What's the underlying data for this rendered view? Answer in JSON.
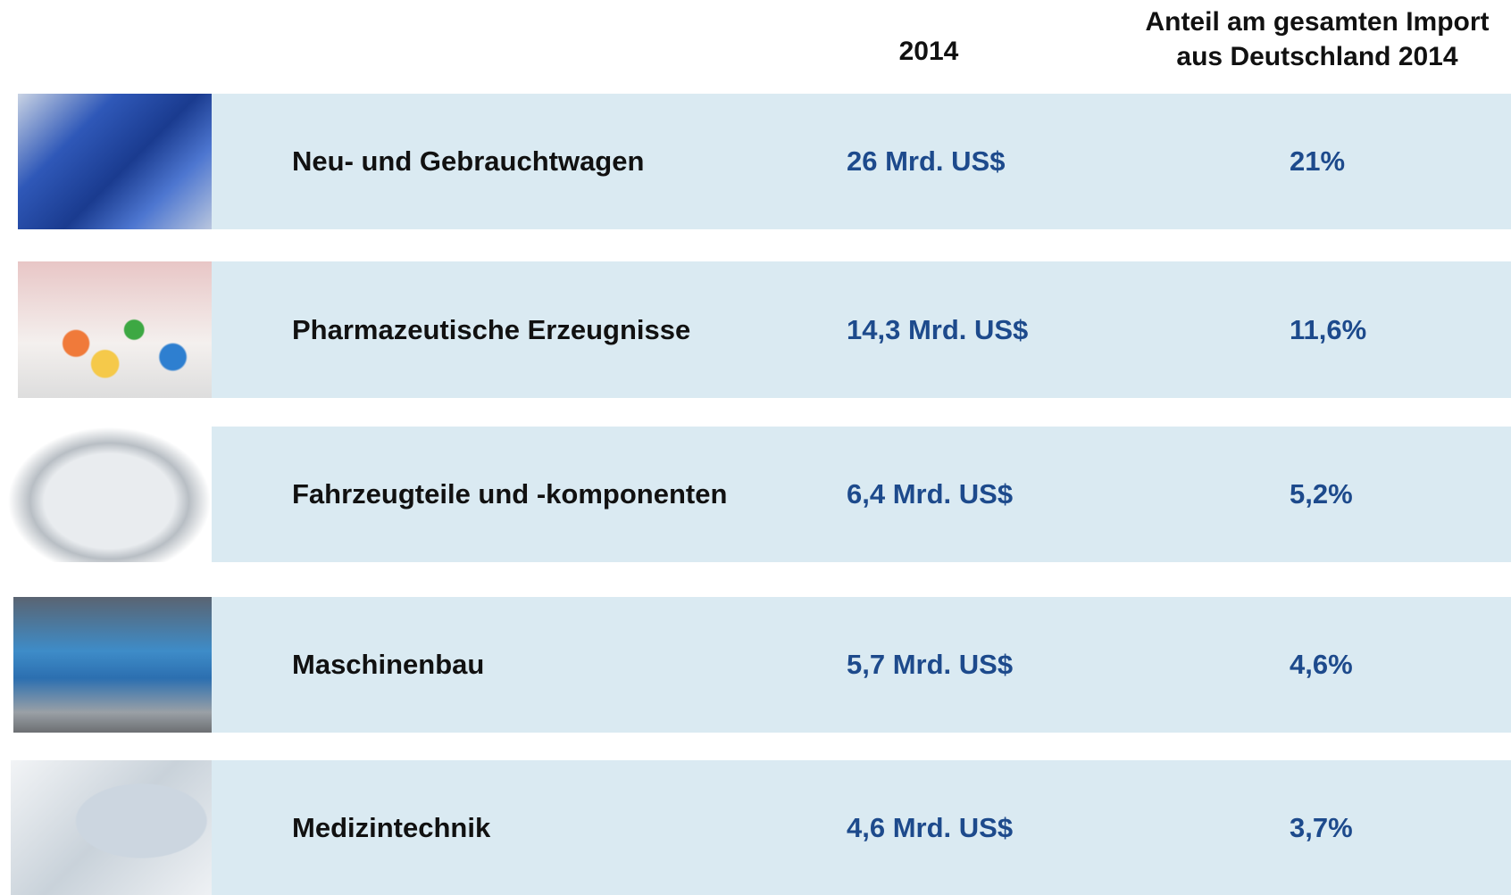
{
  "header": {
    "year": "2014",
    "share": [
      "Anteil am gesamten Import",
      "aus Deutschland 2014"
    ]
  },
  "rows": [
    {
      "label": "Neu- und Gebrauchtwagen",
      "value": "26 Mrd. US$",
      "share": "21%"
    },
    {
      "label": "Pharmazeutische Erzeugnisse",
      "value": "14,3 Mrd. US$",
      "share": "11,6%"
    },
    {
      "label": "Fahrzeugteile und -komponenten",
      "value": "6,4 Mrd. US$",
      "share": "5,2%"
    },
    {
      "label": "Maschinenbau",
      "value": "5,7 Mrd. US$",
      "share": "4,6%"
    },
    {
      "label": "Medizintechnik",
      "value": "4,6 Mrd. US$",
      "share": "3,7%"
    }
  ]
}
